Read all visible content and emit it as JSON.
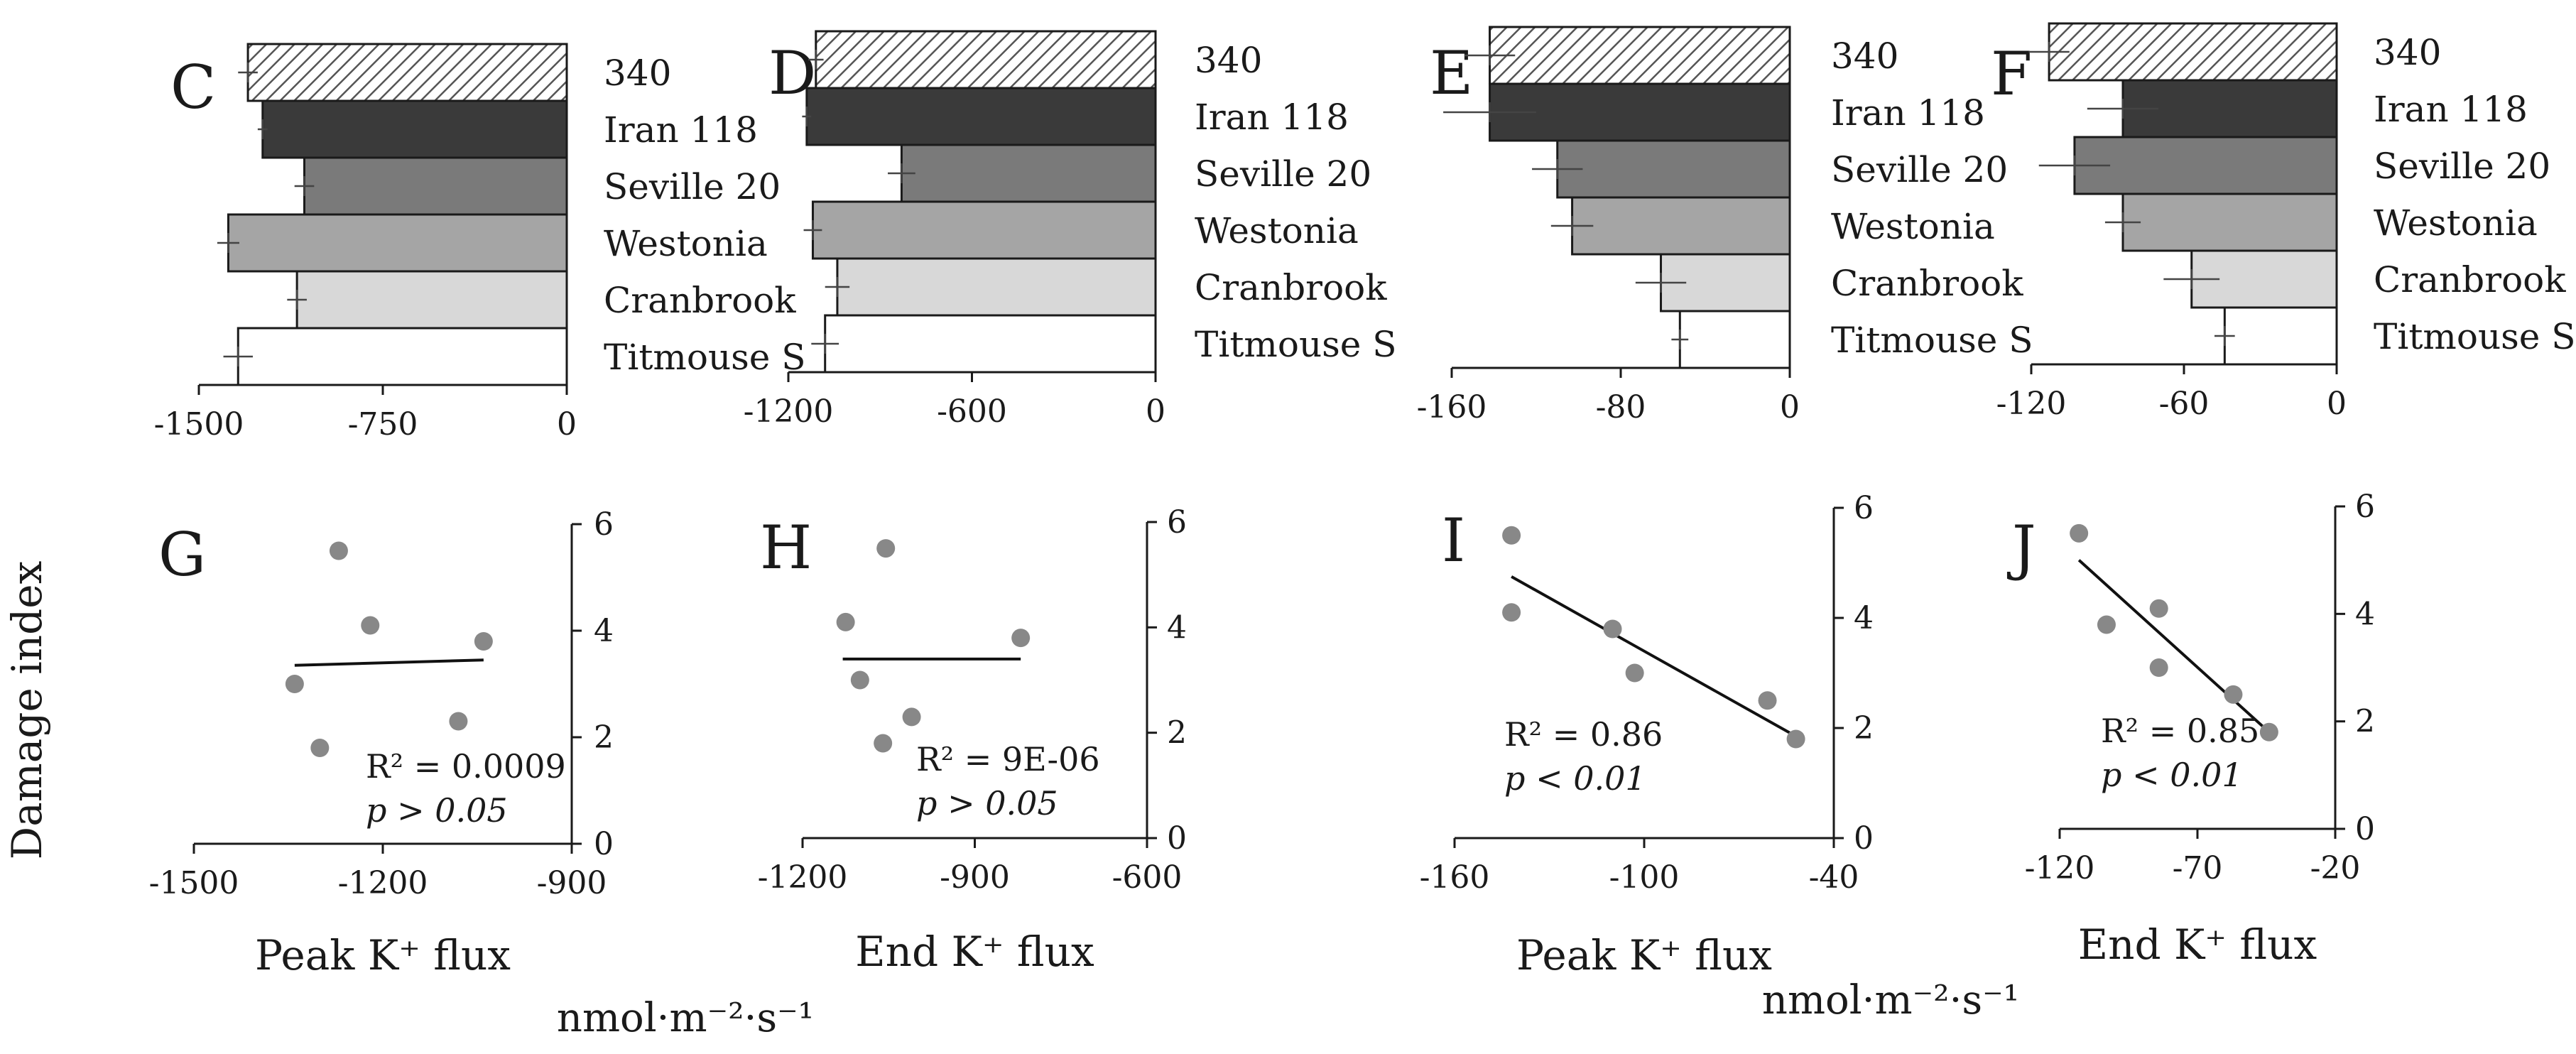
{
  "y_label": "Damage index",
  "unit_label": "nmol·m⁻²·s⁻¹",
  "colors": {
    "340": "hatched",
    "Iran 118": "#3a3a3a",
    "Seville 20": "#7a7a7a",
    "Westonia": "#a5a5a5",
    "Cranbrook": "#d8d8d8",
    "Titmouse S": "#ffffff",
    "points": "#888888"
  },
  "chart_data": [
    {
      "panel": "C",
      "type": "bar",
      "orientation": "horizontal",
      "categories": [
        "340",
        "Iran 118",
        "Seville 20",
        "Westonia",
        "Cranbrook",
        "Titmouse S"
      ],
      "values": [
        -1300,
        -1240,
        -1070,
        -1380,
        -1100,
        -1340
      ],
      "errors": [
        40,
        20,
        40,
        45,
        40,
        60
      ],
      "xlim": [
        -1500,
        0
      ],
      "xticks": [
        -1500,
        -750,
        0
      ],
      "xlabel": ""
    },
    {
      "panel": "D",
      "type": "bar",
      "orientation": "horizontal",
      "categories": [
        "340",
        "Iran 118",
        "Seville 20",
        "Westonia",
        "Cranbrook",
        "Titmouse S"
      ],
      "values": [
        -1110,
        -1140,
        -830,
        -1120,
        -1040,
        -1080
      ],
      "errors": [
        25,
        15,
        45,
        30,
        40,
        45
      ],
      "xlim": [
        -1200,
        0
      ],
      "xticks": [
        -1200,
        -600,
        0
      ],
      "xlabel": ""
    },
    {
      "panel": "E",
      "type": "bar",
      "orientation": "horizontal",
      "categories": [
        "340",
        "Iran 118",
        "Seville 20",
        "Westonia",
        "Cranbrook",
        "Titmouse S"
      ],
      "values": [
        -142,
        -142,
        -110,
        -103,
        -61,
        -52
      ],
      "errors": [
        12,
        22,
        12,
        10,
        12,
        4
      ],
      "xlim": [
        -160,
        0
      ],
      "xticks": [
        -160,
        -80,
        0
      ],
      "xlabel": ""
    },
    {
      "panel": "F",
      "type": "bar",
      "orientation": "horizontal",
      "categories": [
        "340",
        "Iran 118",
        "Seville 20",
        "Westonia",
        "Cranbrook",
        "Titmouse S"
      ],
      "values": [
        -113,
        -84,
        -103,
        -84,
        -57,
        -44
      ],
      "errors": [
        8,
        14,
        14,
        7,
        11,
        4
      ],
      "xlim": [
        -120,
        0
      ],
      "xticks": [
        -120,
        -60,
        0
      ],
      "xlabel": ""
    },
    {
      "panel": "G",
      "type": "scatter",
      "x": [
        -1270,
        -1220,
        -1040,
        -1340,
        -1080,
        -1300
      ],
      "y": [
        5.5,
        4.1,
        3.8,
        3.0,
        2.3,
        1.8
      ],
      "trend": [
        [
          -1340,
          3.35
        ],
        [
          -1040,
          3.45
        ]
      ],
      "xlim": [
        -1500,
        -900
      ],
      "xticks": [
        -1500,
        -1200,
        -900
      ],
      "ylim": [
        0,
        6
      ],
      "yticks": [
        0,
        2,
        4,
        6
      ],
      "xlabel": "Peak K⁺ flux",
      "stat_r2": "R² = 0.0009",
      "stat_p": "p > 0.05"
    },
    {
      "panel": "H",
      "type": "scatter",
      "x": [
        -1055,
        -1125,
        -820,
        -1100,
        -1010,
        -1060
      ],
      "y": [
        5.5,
        4.1,
        3.8,
        3.0,
        2.3,
        1.8
      ],
      "trend": [
        [
          -1130,
          3.4
        ],
        [
          -820,
          3.4
        ]
      ],
      "xlim": [
        -1200,
        -600
      ],
      "xticks": [
        -1200,
        -900,
        -600
      ],
      "ylim": [
        0,
        6
      ],
      "yticks": [
        0,
        2,
        4,
        6
      ],
      "xlabel": "End K⁺ flux",
      "stat_r2": "R² = 9E-06",
      "stat_p": "p > 0.05"
    },
    {
      "panel": "I",
      "type": "scatter",
      "x": [
        -142,
        -142,
        -110,
        -103,
        -61,
        -52
      ],
      "y": [
        5.5,
        4.1,
        3.8,
        3.0,
        2.5,
        1.8
      ],
      "trend": [
        [
          -142,
          4.75
        ],
        [
          -52,
          1.85
        ]
      ],
      "xlim": [
        -160,
        -40
      ],
      "xticks": [
        -160,
        -100,
        -40
      ],
      "ylim": [
        0,
        6
      ],
      "yticks": [
        0,
        2,
        4,
        6
      ],
      "xlabel": "Peak K⁺ flux",
      "stat_r2": "R² = 0.86",
      "stat_p": "p < 0.01"
    },
    {
      "panel": "J",
      "type": "scatter",
      "x": [
        -113,
        -103,
        -84,
        -84,
        -57,
        -44
      ],
      "y": [
        5.5,
        3.8,
        4.1,
        3.0,
        2.5,
        1.8
      ],
      "trend": [
        [
          -113,
          5.0
        ],
        [
          -44,
          1.8
        ]
      ],
      "xlim": [
        -120,
        -20
      ],
      "xticks": [
        -120,
        -70,
        -20
      ],
      "ylim": [
        0,
        6
      ],
      "yticks": [
        0,
        2,
        4,
        6
      ],
      "xlabel": "End K⁺ flux",
      "stat_r2": "R² = 0.85",
      "stat_p": "p < 0.01"
    }
  ]
}
